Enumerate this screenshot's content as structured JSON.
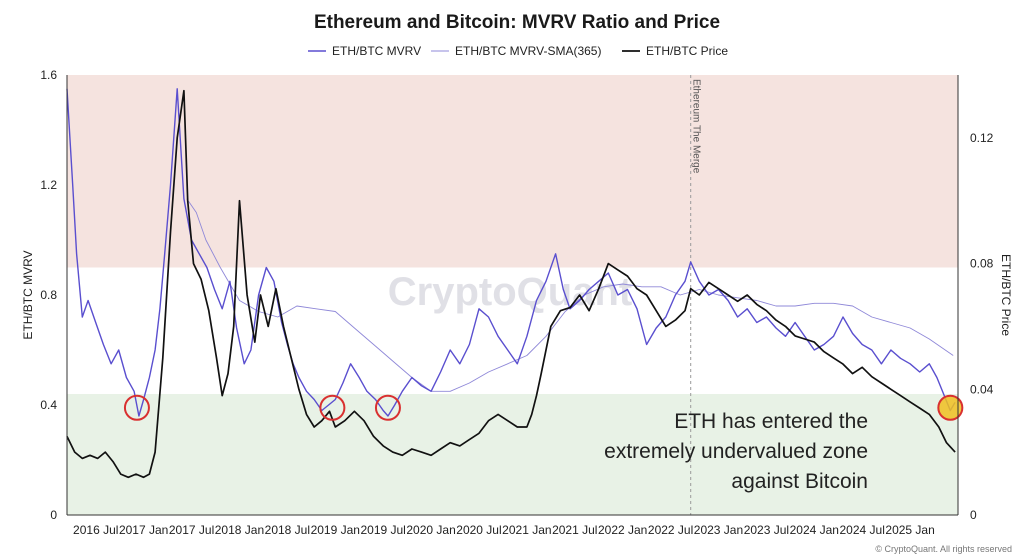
{
  "chart_data": {
    "type": "line",
    "title": "Ethereum and Bitcoin: MVRV Ratio and Price",
    "ylabel_left": "ETH/BTC MVRV",
    "ylabel_right": "ETH/BTC Price",
    "ylim_left": [
      0,
      1.6
    ],
    "ylim_right": [
      0,
      0.14
    ],
    "left_ticks": [
      "0",
      "0.4",
      "0.8",
      "1.2",
      "1.6"
    ],
    "left_tick_values": [
      0,
      0.4,
      0.8,
      1.2,
      1.6
    ],
    "right_ticks": [
      "0",
      "0.04",
      "0.08",
      "0.12"
    ],
    "right_tick_values": [
      0,
      0.04,
      0.08,
      0.12
    ],
    "x_ticks": [
      "2016 Jul",
      "2017 Jan",
      "2017 Jul",
      "2018 Jan",
      "2018 Jul",
      "2019 Jan",
      "2019 Jul",
      "2020 Jan",
      "2020 Jul",
      "2021 Jan",
      "2021 Jul",
      "2022 Jan",
      "2022 Jul",
      "2023 Jan",
      "2023 Jul",
      "2024 Jan",
      "2024 Jul",
      "2025 Jan"
    ],
    "x_tick_values": [
      2016.5,
      2017.0,
      2017.5,
      2018.0,
      2018.5,
      2019.0,
      2019.5,
      2020.0,
      2020.5,
      2021.0,
      2021.5,
      2022.0,
      2022.5,
      2023.0,
      2023.5,
      2024.0,
      2024.5,
      2025.0
    ],
    "xlim": [
      2016.2,
      2025.5
    ],
    "legend_position": "top-center",
    "grid": false,
    "zones": {
      "overvalued": {
        "from": 0.9,
        "to": 1.6,
        "color": "#f5e3df"
      },
      "undervalued": {
        "from": 0,
        "to": 0.44,
        "color": "#e8f2e6"
      }
    },
    "event_line": {
      "x": 2022.71,
      "label": "Ethereum The Merge"
    },
    "annotation": [
      "ETH has entered the",
      "extremely undervalued zone",
      "against Bitcoin"
    ],
    "watermark": "CryptoQuant",
    "copyright": "© CryptoQuant. All rights reserved",
    "highlight_circles": [
      {
        "x": 2016.93,
        "y": 0.39,
        "fill": "none"
      },
      {
        "x": 2018.97,
        "y": 0.39,
        "fill": "none"
      },
      {
        "x": 2019.55,
        "y": 0.39,
        "fill": "none"
      },
      {
        "x": 2025.42,
        "y": 0.39,
        "fill": "#f0c020"
      }
    ],
    "series": [
      {
        "name": "ETH/BTC MVRV",
        "axis": "left",
        "color": "#5a4fcf",
        "x": [
          2016.2,
          2016.26,
          2016.3,
          2016.36,
          2016.42,
          2016.5,
          2016.58,
          2016.66,
          2016.74,
          2016.82,
          2016.9,
          2016.95,
          2017.0,
          2017.06,
          2017.12,
          2017.17,
          2017.22,
          2017.28,
          2017.35,
          2017.42,
          2017.5,
          2017.58,
          2017.66,
          2017.74,
          2017.82,
          2017.9,
          2017.97,
          2018.05,
          2018.12,
          2018.2,
          2018.28,
          2018.36,
          2018.44,
          2018.5,
          2018.56,
          2018.62,
          2018.7,
          2018.78,
          2018.86,
          2018.93,
          2019.0,
          2019.08,
          2019.16,
          2019.25,
          2019.33,
          2019.42,
          2019.5,
          2019.55,
          2019.62,
          2019.7,
          2019.8,
          2019.9,
          2020.0,
          2020.1,
          2020.2,
          2020.3,
          2020.4,
          2020.5,
          2020.6,
          2020.7,
          2020.8,
          2020.9,
          2021.0,
          2021.1,
          2021.2,
          2021.3,
          2021.38,
          2021.45,
          2021.55,
          2021.65,
          2021.75,
          2021.85,
          2021.95,
          2022.05,
          2022.15,
          2022.25,
          2022.35,
          2022.45,
          2022.55,
          2022.65,
          2022.71,
          2022.8,
          2022.9,
          2023.0,
          2023.1,
          2023.2,
          2023.3,
          2023.4,
          2023.5,
          2023.6,
          2023.7,
          2023.8,
          2023.9,
          2024.0,
          2024.1,
          2024.2,
          2024.3,
          2024.4,
          2024.5,
          2024.6,
          2024.7,
          2024.8,
          2024.9,
          2025.0,
          2025.1,
          2025.2,
          2025.28,
          2025.35,
          2025.42,
          2025.47
        ],
        "values": [
          1.55,
          1.2,
          0.95,
          0.72,
          0.78,
          0.7,
          0.62,
          0.55,
          0.6,
          0.5,
          0.45,
          0.36,
          0.42,
          0.5,
          0.6,
          0.75,
          0.95,
          1.2,
          1.55,
          1.15,
          1.0,
          0.95,
          0.9,
          0.82,
          0.75,
          0.85,
          0.68,
          0.55,
          0.6,
          0.8,
          0.9,
          0.85,
          0.7,
          0.62,
          0.55,
          0.5,
          0.45,
          0.42,
          0.38,
          0.4,
          0.42,
          0.48,
          0.55,
          0.5,
          0.45,
          0.42,
          0.38,
          0.36,
          0.4,
          0.45,
          0.5,
          0.47,
          0.45,
          0.52,
          0.6,
          0.55,
          0.62,
          0.75,
          0.72,
          0.65,
          0.6,
          0.55,
          0.65,
          0.78,
          0.85,
          0.95,
          0.82,
          0.75,
          0.78,
          0.82,
          0.85,
          0.88,
          0.8,
          0.82,
          0.75,
          0.62,
          0.68,
          0.72,
          0.8,
          0.85,
          0.92,
          0.85,
          0.8,
          0.82,
          0.78,
          0.72,
          0.75,
          0.7,
          0.72,
          0.68,
          0.65,
          0.7,
          0.65,
          0.6,
          0.62,
          0.65,
          0.72,
          0.66,
          0.62,
          0.6,
          0.55,
          0.6,
          0.57,
          0.55,
          0.52,
          0.55,
          0.5,
          0.44,
          0.38,
          0.41
        ]
      },
      {
        "name": "ETH/BTC MVRV-SMA(365)",
        "axis": "left",
        "color": "#8f88d8",
        "x": [
          2017.45,
          2017.55,
          2017.65,
          2017.8,
          2018.0,
          2018.2,
          2018.4,
          2018.6,
          2018.8,
          2019.0,
          2019.2,
          2019.4,
          2019.6,
          2019.8,
          2020.0,
          2020.2,
          2020.4,
          2020.6,
          2020.8,
          2021.0,
          2021.2,
          2021.4,
          2021.6,
          2021.8,
          2022.0,
          2022.2,
          2022.4,
          2022.6,
          2022.8,
          2023.0,
          2023.2,
          2023.4,
          2023.6,
          2023.8,
          2024.0,
          2024.2,
          2024.4,
          2024.6,
          2024.8,
          2025.0,
          2025.2,
          2025.45
        ],
        "values": [
          1.15,
          1.1,
          1.0,
          0.9,
          0.78,
          0.74,
          0.72,
          0.76,
          0.75,
          0.74,
          0.68,
          0.62,
          0.56,
          0.5,
          0.45,
          0.45,
          0.48,
          0.52,
          0.55,
          0.58,
          0.65,
          0.74,
          0.8,
          0.83,
          0.84,
          0.83,
          0.83,
          0.8,
          0.82,
          0.8,
          0.79,
          0.78,
          0.76,
          0.76,
          0.77,
          0.77,
          0.76,
          0.72,
          0.7,
          0.68,
          0.64,
          0.58
        ]
      },
      {
        "name": "ETH/BTC Price",
        "axis": "right",
        "color": "#111111",
        "x": [
          2016.2,
          2016.28,
          2016.36,
          2016.44,
          2016.52,
          2016.6,
          2016.68,
          2016.76,
          2016.84,
          2016.92,
          2017.0,
          2017.06,
          2017.12,
          2017.2,
          2017.28,
          2017.35,
          2017.42,
          2017.46,
          2017.52,
          2017.6,
          2017.68,
          2017.76,
          2017.82,
          2017.88,
          2017.94,
          2018.0,
          2018.08,
          2018.16,
          2018.22,
          2018.3,
          2018.38,
          2018.46,
          2018.54,
          2018.62,
          2018.7,
          2018.78,
          2018.86,
          2018.94,
          2019.0,
          2019.1,
          2019.2,
          2019.3,
          2019.4,
          2019.5,
          2019.6,
          2019.7,
          2019.8,
          2019.9,
          2020.0,
          2020.1,
          2020.2,
          2020.3,
          2020.4,
          2020.5,
          2020.6,
          2020.7,
          2020.8,
          2020.9,
          2021.0,
          2021.05,
          2021.1,
          2021.15,
          2021.25,
          2021.35,
          2021.45,
          2021.55,
          2021.65,
          2021.75,
          2021.85,
          2021.95,
          2022.05,
          2022.15,
          2022.25,
          2022.35,
          2022.45,
          2022.55,
          2022.65,
          2022.71,
          2022.8,
          2022.9,
          2023.0,
          2023.1,
          2023.2,
          2023.3,
          2023.4,
          2023.5,
          2023.6,
          2023.7,
          2023.8,
          2023.9,
          2024.0,
          2024.1,
          2024.2,
          2024.3,
          2024.4,
          2024.5,
          2024.6,
          2024.7,
          2024.8,
          2024.9,
          2025.0,
          2025.1,
          2025.2,
          2025.3,
          2025.38,
          2025.47
        ],
        "values": [
          0.025,
          0.02,
          0.018,
          0.019,
          0.018,
          0.02,
          0.017,
          0.013,
          0.012,
          0.013,
          0.012,
          0.013,
          0.02,
          0.05,
          0.09,
          0.12,
          0.135,
          0.1,
          0.08,
          0.075,
          0.065,
          0.05,
          0.038,
          0.045,
          0.06,
          0.1,
          0.07,
          0.055,
          0.07,
          0.06,
          0.072,
          0.06,
          0.05,
          0.04,
          0.032,
          0.028,
          0.03,
          0.033,
          0.028,
          0.03,
          0.033,
          0.03,
          0.025,
          0.022,
          0.02,
          0.019,
          0.021,
          0.02,
          0.019,
          0.021,
          0.023,
          0.022,
          0.024,
          0.026,
          0.03,
          0.032,
          0.03,
          0.028,
          0.028,
          0.032,
          0.038,
          0.045,
          0.06,
          0.065,
          0.066,
          0.07,
          0.065,
          0.072,
          0.08,
          0.078,
          0.076,
          0.072,
          0.07,
          0.065,
          0.06,
          0.062,
          0.065,
          0.072,
          0.07,
          0.074,
          0.072,
          0.07,
          0.068,
          0.07,
          0.067,
          0.065,
          0.062,
          0.06,
          0.057,
          0.056,
          0.055,
          0.052,
          0.05,
          0.048,
          0.045,
          0.047,
          0.044,
          0.042,
          0.04,
          0.038,
          0.036,
          0.034,
          0.032,
          0.028,
          0.023,
          0.02
        ]
      }
    ]
  }
}
